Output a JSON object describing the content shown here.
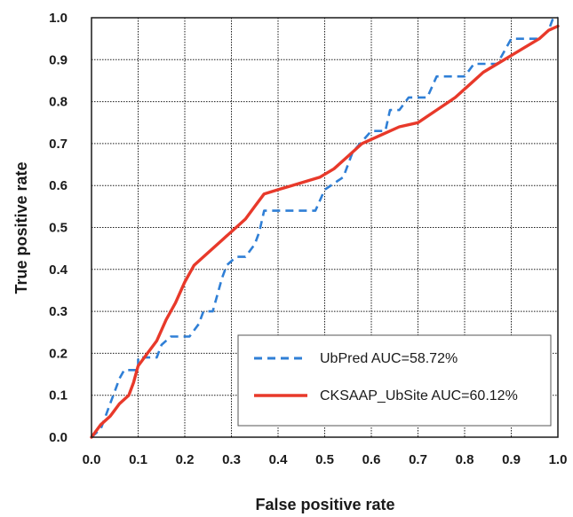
{
  "chart_data": {
    "type": "line",
    "xlabel": "False positive rate",
    "ylabel": "True positive rate",
    "xlim": [
      0,
      1
    ],
    "ylim": [
      0,
      1
    ],
    "x_ticks": [
      "0.0",
      "0.1",
      "0.2",
      "0.3",
      "0.4",
      "0.5",
      "0.6",
      "0.7",
      "0.8",
      "0.9",
      "1.0"
    ],
    "y_ticks": [
      "0.0",
      "0.1",
      "0.2",
      "0.3",
      "0.4",
      "0.5",
      "0.6",
      "0.7",
      "0.8",
      "0.9",
      "1.0"
    ],
    "grid": true,
    "legend_position": "bottom-right",
    "series": [
      {
        "name": "UbPred AUC=58.72%",
        "color": "#2f7fd6",
        "style": "dashed",
        "points": [
          [
            0,
            0
          ],
          [
            0.02,
            0.02
          ],
          [
            0.03,
            0.05
          ],
          [
            0.04,
            0.08
          ],
          [
            0.05,
            0.11
          ],
          [
            0.06,
            0.14
          ],
          [
            0.07,
            0.16
          ],
          [
            0.1,
            0.16
          ],
          [
            0.1,
            0.19
          ],
          [
            0.14,
            0.19
          ],
          [
            0.15,
            0.22
          ],
          [
            0.17,
            0.24
          ],
          [
            0.21,
            0.24
          ],
          [
            0.23,
            0.27
          ],
          [
            0.24,
            0.3
          ],
          [
            0.26,
            0.3
          ],
          [
            0.28,
            0.38
          ],
          [
            0.29,
            0.41
          ],
          [
            0.31,
            0.43
          ],
          [
            0.33,
            0.43
          ],
          [
            0.35,
            0.46
          ],
          [
            0.36,
            0.49
          ],
          [
            0.37,
            0.54
          ],
          [
            0.48,
            0.54
          ],
          [
            0.5,
            0.59
          ],
          [
            0.54,
            0.62
          ],
          [
            0.56,
            0.68
          ],
          [
            0.6,
            0.73
          ],
          [
            0.63,
            0.73
          ],
          [
            0.64,
            0.78
          ],
          [
            0.66,
            0.78
          ],
          [
            0.68,
            0.81
          ],
          [
            0.72,
            0.81
          ],
          [
            0.74,
            0.86
          ],
          [
            0.8,
            0.86
          ],
          [
            0.82,
            0.89
          ],
          [
            0.87,
            0.89
          ],
          [
            0.9,
            0.95
          ],
          [
            0.96,
            0.95
          ],
          [
            0.98,
            0.97
          ],
          [
            0.99,
            1.0
          ],
          [
            1.0,
            1.0
          ]
        ]
      },
      {
        "name": "CKSAAP_UbSite AUC=60.12%",
        "color": "#e8392a",
        "style": "solid",
        "points": [
          [
            0,
            0
          ],
          [
            0.02,
            0.03
          ],
          [
            0.04,
            0.05
          ],
          [
            0.06,
            0.08
          ],
          [
            0.08,
            0.1
          ],
          [
            0.09,
            0.13
          ],
          [
            0.1,
            0.17
          ],
          [
            0.12,
            0.2
          ],
          [
            0.14,
            0.23
          ],
          [
            0.16,
            0.28
          ],
          [
            0.18,
            0.32
          ],
          [
            0.2,
            0.37
          ],
          [
            0.22,
            0.41
          ],
          [
            0.25,
            0.44
          ],
          [
            0.28,
            0.47
          ],
          [
            0.31,
            0.5
          ],
          [
            0.33,
            0.52
          ],
          [
            0.35,
            0.55
          ],
          [
            0.37,
            0.58
          ],
          [
            0.4,
            0.59
          ],
          [
            0.43,
            0.6
          ],
          [
            0.46,
            0.61
          ],
          [
            0.49,
            0.62
          ],
          [
            0.52,
            0.64
          ],
          [
            0.55,
            0.67
          ],
          [
            0.58,
            0.7
          ],
          [
            0.62,
            0.72
          ],
          [
            0.66,
            0.74
          ],
          [
            0.7,
            0.75
          ],
          [
            0.74,
            0.78
          ],
          [
            0.78,
            0.81
          ],
          [
            0.81,
            0.84
          ],
          [
            0.84,
            0.87
          ],
          [
            0.87,
            0.89
          ],
          [
            0.9,
            0.91
          ],
          [
            0.93,
            0.93
          ],
          [
            0.96,
            0.95
          ],
          [
            0.98,
            0.97
          ],
          [
            1.0,
            0.98
          ]
        ]
      }
    ]
  }
}
